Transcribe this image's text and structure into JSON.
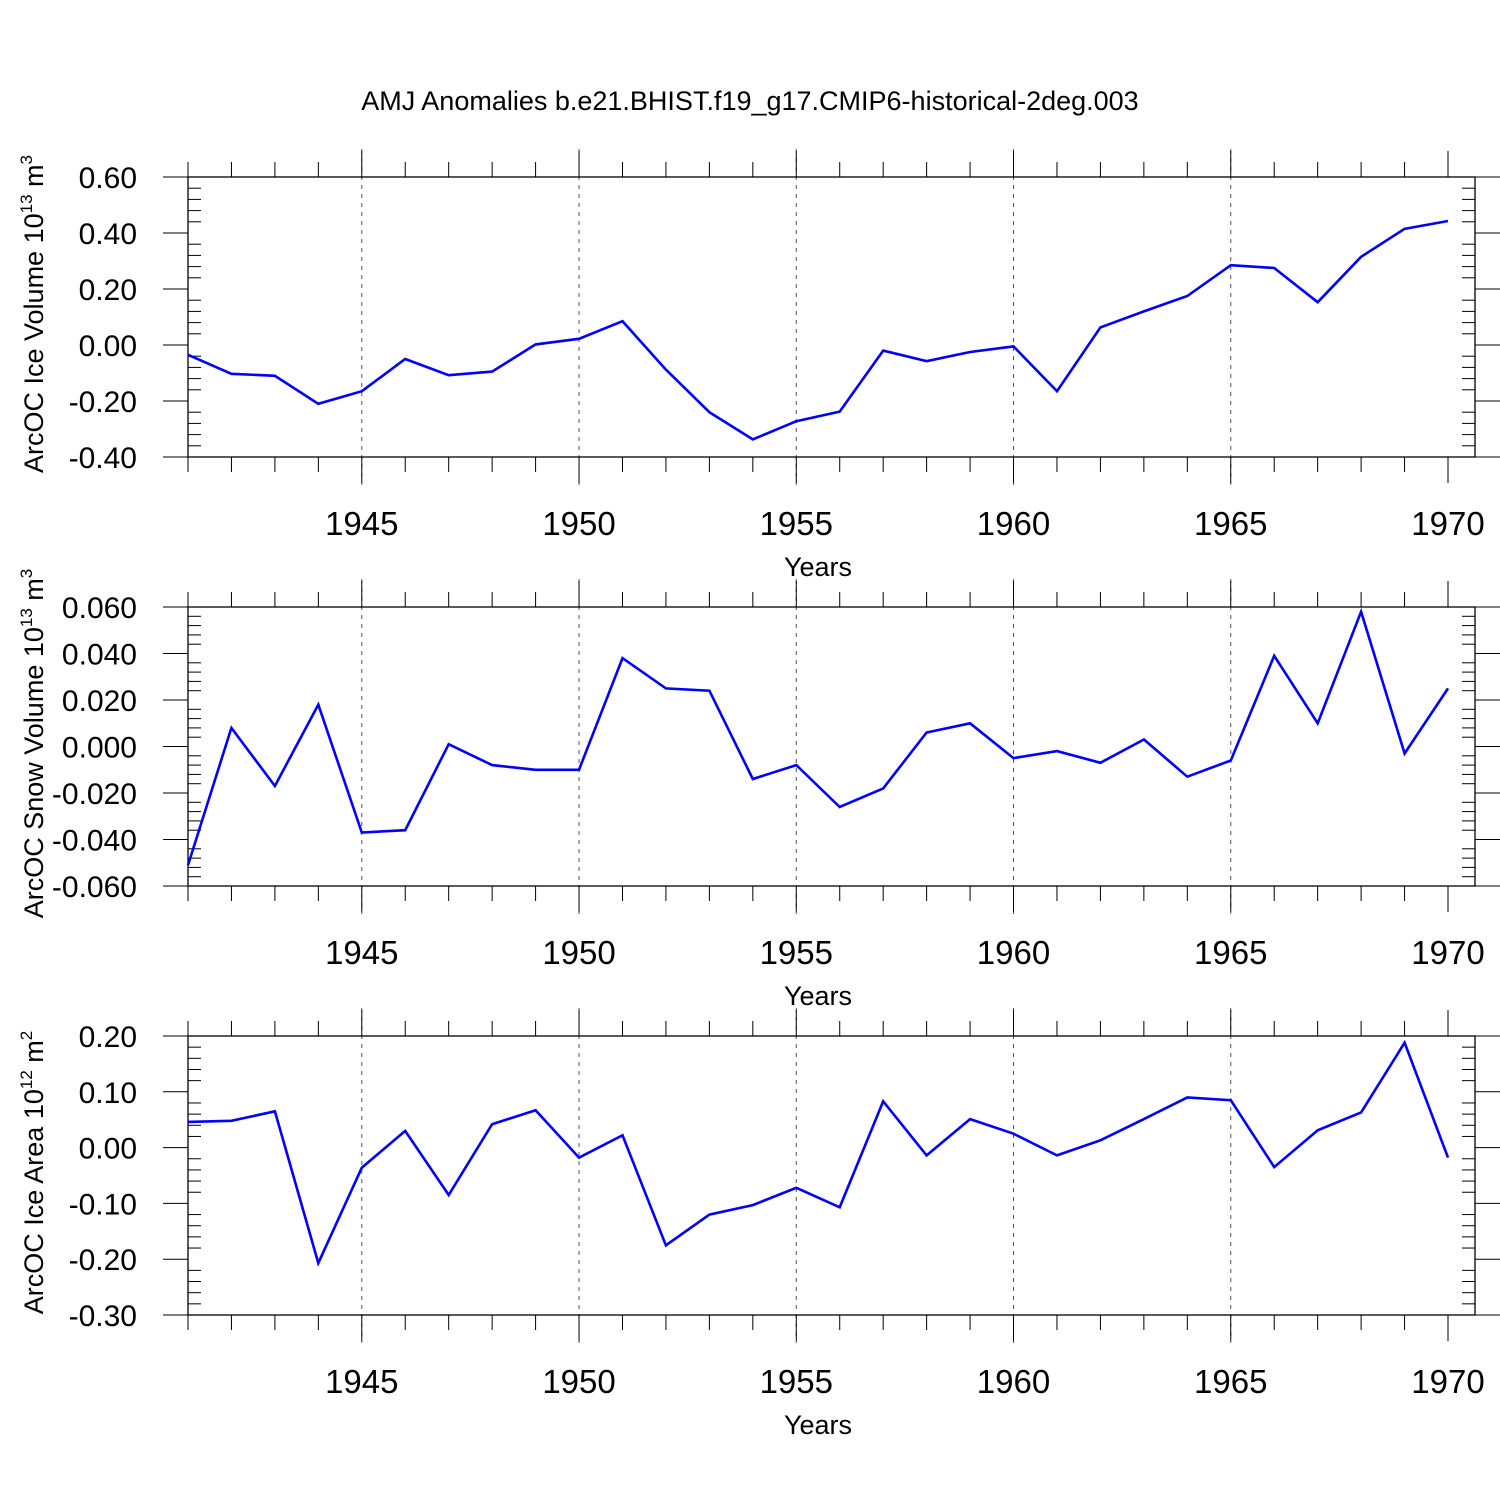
{
  "title": "AMJ Anomalies b.e21.BHIST.f19_g17.CMIP6-historical-2deg.003",
  "colors": {
    "line": "#0000ff",
    "axis": "#000000",
    "grid": "#555555"
  },
  "chart_data": [
    {
      "type": "line",
      "ylabel": {
        "text": "ArcOC Ice Volume 10",
        "exp": "13",
        "unit": " m",
        "unit_exp": "3"
      },
      "xlabel": "Years",
      "xlim": [
        1941,
        1970
      ],
      "ylim": [
        -0.4,
        0.6
      ],
      "yticks": [
        -0.4,
        -0.2,
        0.0,
        0.2,
        0.4,
        0.6
      ],
      "ytick_labels": [
        "-0.40",
        "-0.20",
        "0.00",
        "0.20",
        "0.40",
        "0.60"
      ],
      "xticks": [
        1945,
        1950,
        1955,
        1960,
        1965,
        1970
      ],
      "xtick_labels": [
        "1945",
        "1950",
        "1955",
        "1960",
        "1965",
        "1970"
      ],
      "grid": "vertical dashed at labeled years",
      "x": [
        1941,
        1942,
        1943,
        1944,
        1945,
        1946,
        1947,
        1948,
        1949,
        1950,
        1951,
        1952,
        1953,
        1954,
        1955,
        1956,
        1957,
        1958,
        1959,
        1960,
        1961,
        1962,
        1963,
        1964,
        1965,
        1966,
        1967,
        1968,
        1969,
        1970
      ],
      "series": [
        {
          "values": [
            -0.035,
            -0.103,
            -0.11,
            -0.21,
            -0.165,
            -0.05,
            -0.108,
            -0.095,
            0.002,
            0.022,
            0.085,
            -0.088,
            -0.24,
            -0.337,
            -0.272,
            -0.238,
            -0.02,
            -0.058,
            -0.025,
            -0.005,
            -0.165,
            0.063,
            0.12,
            0.175,
            0.285,
            0.275,
            0.153,
            0.315,
            0.415,
            0.443
          ]
        }
      ]
    },
    {
      "type": "line",
      "ylabel": {
        "text": "ArcOC Snow Volume 10",
        "exp": "13",
        "unit": " m",
        "unit_exp": "3"
      },
      "xlabel": "Years",
      "xlim": [
        1941,
        1970
      ],
      "ylim": [
        -0.06,
        0.06
      ],
      "yticks": [
        -0.06,
        -0.04,
        -0.02,
        0.0,
        0.02,
        0.04,
        0.06
      ],
      "ytick_labels": [
        "-0.060",
        "-0.040",
        "-0.020",
        "0.000",
        "0.020",
        "0.040",
        "0.060"
      ],
      "xticks": [
        1945,
        1950,
        1955,
        1960,
        1965,
        1970
      ],
      "xtick_labels": [
        "1945",
        "1950",
        "1955",
        "1960",
        "1965",
        "1970"
      ],
      "grid": "vertical dashed at labeled years",
      "x": [
        1941,
        1942,
        1943,
        1944,
        1945,
        1946,
        1947,
        1948,
        1949,
        1950,
        1951,
        1952,
        1953,
        1954,
        1955,
        1956,
        1957,
        1958,
        1959,
        1960,
        1961,
        1962,
        1963,
        1964,
        1965,
        1966,
        1967,
        1968,
        1969,
        1970
      ],
      "series": [
        {
          "values": [
            -0.051,
            0.008,
            -0.017,
            0.018,
            -0.037,
            -0.036,
            0.001,
            -0.008,
            -0.01,
            -0.01,
            0.038,
            0.025,
            0.024,
            -0.014,
            -0.008,
            -0.026,
            -0.018,
            0.006,
            0.01,
            -0.005,
            -0.002,
            -0.007,
            0.003,
            -0.013,
            -0.006,
            0.039,
            0.01,
            0.058,
            -0.003,
            0.025
          ]
        }
      ]
    },
    {
      "type": "line",
      "ylabel": {
        "text": "ArcOC Ice Area 10",
        "exp": "12",
        "unit": " m",
        "unit_exp": "2"
      },
      "xlabel": "Years",
      "xlim": [
        1941,
        1970
      ],
      "ylim": [
        -0.3,
        0.2
      ],
      "yticks": [
        -0.3,
        -0.2,
        -0.1,
        0.0,
        0.1,
        0.2
      ],
      "ytick_labels": [
        "-0.30",
        "-0.20",
        "-0.10",
        "0.00",
        "0.10",
        "0.20"
      ],
      "xticks": [
        1945,
        1950,
        1955,
        1960,
        1965,
        1970
      ],
      "xtick_labels": [
        "1945",
        "1950",
        "1955",
        "1960",
        "1965",
        "1970"
      ],
      "grid": "vertical dashed at labeled years",
      "x": [
        1941,
        1942,
        1943,
        1944,
        1945,
        1946,
        1947,
        1948,
        1949,
        1950,
        1951,
        1952,
        1953,
        1954,
        1955,
        1956,
        1957,
        1958,
        1959,
        1960,
        1961,
        1962,
        1963,
        1964,
        1965,
        1966,
        1967,
        1968,
        1969,
        1970
      ],
      "series": [
        {
          "values": [
            0.046,
            0.048,
            0.065,
            -0.207,
            -0.036,
            0.03,
            -0.085,
            0.042,
            0.067,
            -0.018,
            0.022,
            -0.175,
            -0.12,
            -0.103,
            -0.072,
            -0.107,
            0.083,
            -0.014,
            0.051,
            0.025,
            -0.014,
            0.013,
            0.051,
            0.09,
            0.085,
            -0.035,
            0.031,
            0.063,
            0.188,
            -0.018
          ]
        }
      ]
    }
  ]
}
